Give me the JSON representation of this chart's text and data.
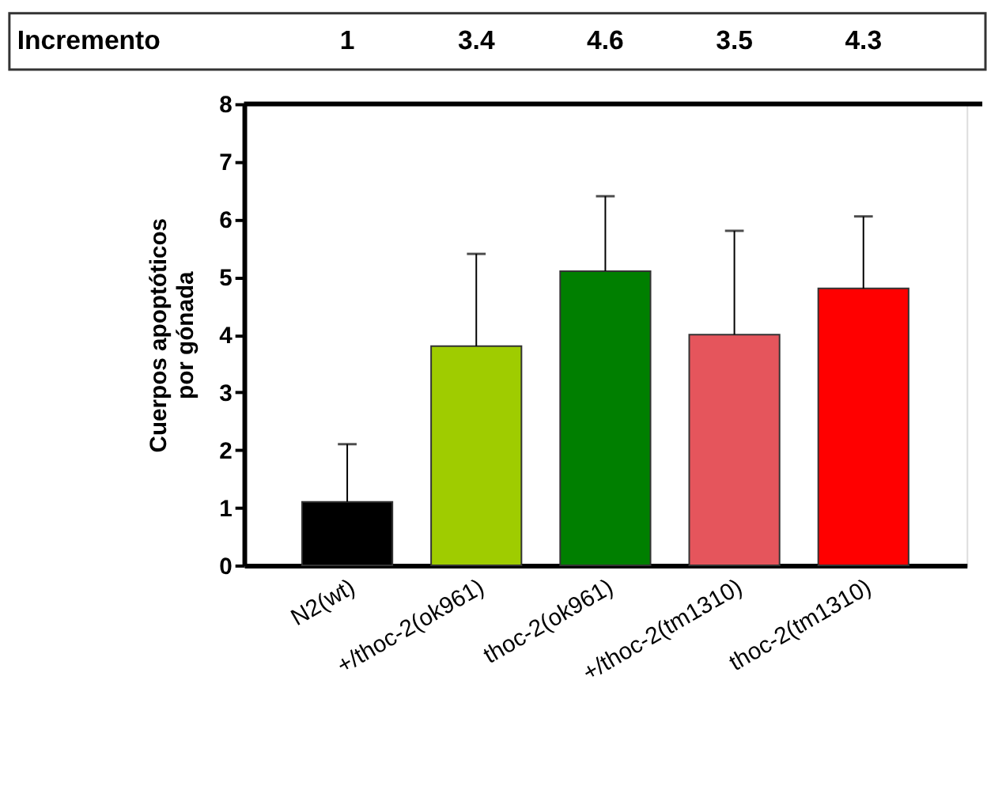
{
  "chart_data": {
    "type": "bar",
    "ylabel": "Cuerpos apoptóticos\npor gónada",
    "categories": [
      "N2(wt)",
      "+/thoc-2(ok961)",
      "thoc-2(ok961)",
      "+/thoc-2(tm1310)",
      "thoc-2(tm1310)"
    ],
    "values": [
      1.1,
      3.8,
      5.1,
      4.0,
      4.8
    ],
    "colors": [
      "#000000",
      "#9fcc00",
      "#007f00",
      "#e5555c",
      "#ff0000"
    ],
    "errors": [
      [
        1.1,
        2.1
      ],
      [
        3.8,
        5.4
      ],
      [
        5.1,
        6.4
      ],
      [
        4.0,
        5.8
      ],
      [
        4.8,
        6.05
      ]
    ],
    "annotations": [
      "Incremento",
      "1",
      "3.4",
      "4.6",
      "3.5",
      "4.3"
    ],
    "ylim": [
      0,
      8
    ],
    "yticks": [
      0,
      1,
      2,
      3,
      4,
      5,
      6,
      7,
      8
    ],
    "grid": false,
    "legend": false
  }
}
